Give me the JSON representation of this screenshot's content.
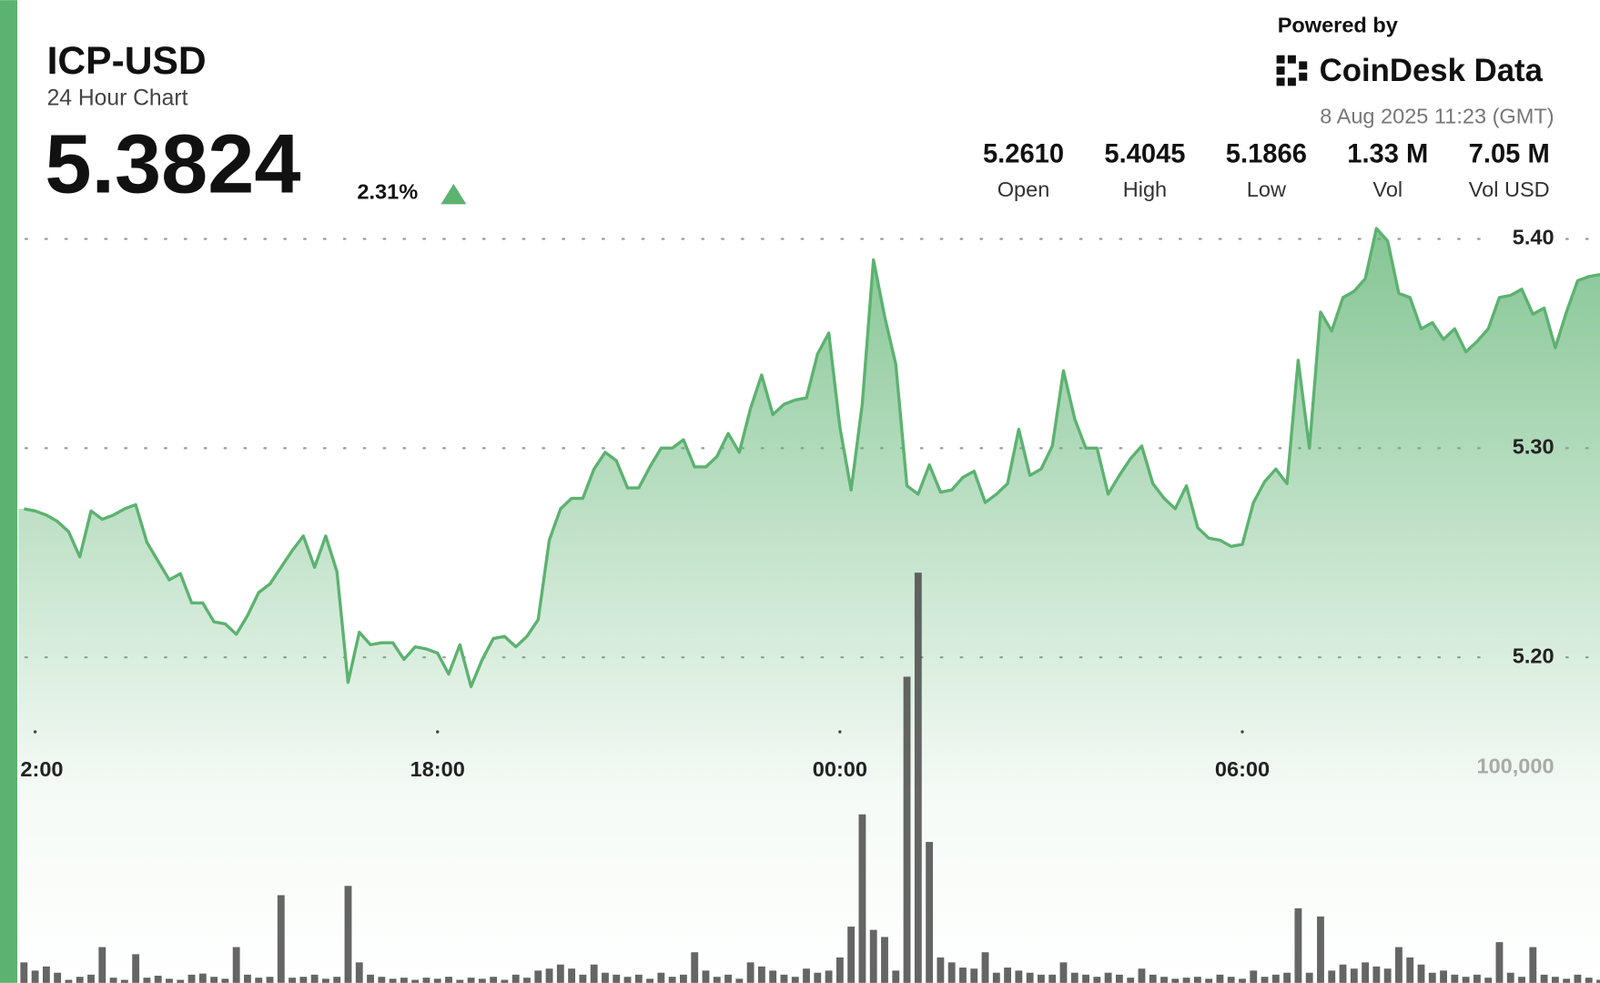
{
  "header": {
    "symbol": "ICP-USD",
    "subtitle": "24 Hour Chart",
    "price": "5.3824",
    "change": "2.31%",
    "powered_by": "Powered by",
    "brand": "CoinDesk Data",
    "timestamp": "8 Aug 2025 11:23 (GMT)",
    "stats": [
      {
        "value": "5.2610",
        "label": "Open"
      },
      {
        "value": "5.4045",
        "label": "High"
      },
      {
        "value": "5.1866",
        "label": "Low"
      },
      {
        "value": "1.33 M",
        "label": "Vol"
      },
      {
        "value": "7.05 M",
        "label": "Vol USD"
      }
    ]
  },
  "chart_data": {
    "type": "line",
    "x": [
      710,
      720,
      730,
      740,
      750,
      760,
      770,
      780,
      790,
      800,
      810,
      820,
      830,
      840,
      850,
      860,
      870,
      880,
      890,
      900,
      910,
      920,
      930,
      940,
      950,
      960,
      970,
      980,
      990,
      1000,
      1010,
      1020,
      1030,
      1040,
      1050,
      1060,
      1070,
      1080,
      1090,
      1100,
      1110,
      1120,
      1130,
      1140,
      1150,
      1160,
      1170,
      1180,
      1190,
      1200,
      1210,
      1220,
      1230,
      1240,
      1250,
      1260,
      1270,
      1280,
      1290,
      1300,
      1310,
      1320,
      1330,
      1340,
      1350,
      1360,
      1370,
      1380,
      1390,
      1400,
      1410,
      1420,
      1430,
      1440,
      1450,
      1460,
      1470,
      1480,
      1490,
      1500,
      1510,
      1520,
      1530,
      1540,
      1550,
      1560,
      1570,
      1580,
      1590,
      1600,
      1610,
      1620,
      1630,
      1640,
      1650,
      1660,
      1670,
      1680,
      1690,
      1700,
      1710,
      1720,
      1730,
      1740,
      1750,
      1760,
      1770,
      1780,
      1790,
      1800,
      1810,
      1820,
      1830,
      1840,
      1850,
      1860,
      1870,
      1880,
      1890,
      1900,
      1910,
      1920,
      1930,
      1940,
      1950,
      1960,
      1970,
      1980,
      1990,
      2000,
      2010,
      2020,
      2030,
      2040,
      2050,
      2060,
      2070,
      2080,
      2090,
      2100,
      2110,
      2120
    ],
    "xlim": [
      705,
      2120
    ],
    "xticks": [
      {
        "value": 720,
        "label": "2:00"
      },
      {
        "value": 1080,
        "label": "18:00"
      },
      {
        "value": 1440,
        "label": "00:00"
      },
      {
        "value": 1800,
        "label": "06:00"
      }
    ],
    "ylim": [
      5.05,
      5.41
    ],
    "yticks": [
      {
        "value": 5.2,
        "label": "5.20"
      },
      {
        "value": 5.3,
        "label": "5.30"
      },
      {
        "value": 5.4,
        "label": "5.40"
      }
    ],
    "y2lim": [
      0,
      355000
    ],
    "y2ticks": [
      {
        "value": 100000,
        "label": "100,000"
      }
    ],
    "grid": true,
    "series": [
      {
        "color": "#5cb270",
        "values": [
          5.271,
          5.27,
          5.268,
          5.265,
          5.26,
          5.248,
          5.27,
          5.266,
          5.268,
          5.271,
          5.273,
          5.255,
          5.246,
          5.237,
          5.24,
          5.226,
          5.226,
          5.217,
          5.216,
          5.211,
          5.22,
          5.231,
          5.235,
          5.243,
          5.251,
          5.258,
          5.243,
          5.258,
          5.241,
          5.188,
          5.212,
          5.206,
          5.207,
          5.207,
          5.199,
          5.205,
          5.204,
          5.202,
          5.192,
          5.206,
          5.186,
          5.199,
          5.209,
          5.21,
          5.205,
          5.21,
          5.218,
          5.256,
          5.271,
          5.276,
          5.276,
          5.29,
          5.298,
          5.294,
          5.281,
          5.281,
          5.291,
          5.3,
          5.3,
          5.304,
          5.291,
          5.291,
          5.296,
          5.307,
          5.298,
          5.319,
          5.335,
          5.316,
          5.321,
          5.323,
          5.324,
          5.345,
          5.355,
          5.31,
          5.28,
          5.321,
          5.39,
          5.363,
          5.34,
          5.282,
          5.278,
          5.292,
          5.279,
          5.28,
          5.286,
          5.289,
          5.274,
          5.278,
          5.283,
          5.309,
          5.287,
          5.29,
          5.301,
          5.337,
          5.314,
          5.3,
          5.3,
          5.278,
          5.287,
          5.295,
          5.301,
          5.283,
          5.276,
          5.271,
          5.282,
          5.262,
          5.257,
          5.256,
          5.253,
          5.254,
          5.274,
          5.284,
          5.29,
          5.283,
          5.342,
          5.3,
          5.365,
          5.356,
          5.372,
          5.375,
          5.381,
          5.405,
          5.399,
          5.374,
          5.372,
          5.357,
          5.36,
          5.352,
          5.357,
          5.346,
          5.351,
          5.357,
          5.372,
          5.373,
          5.376,
          5.364,
          5.367,
          5.348,
          5.365,
          5.38,
          5.382,
          5.383
        ]
      },
      {
        "type": "bar",
        "axis": "y2",
        "color": "#4a4a4a",
        "values": [
          9500,
          5700,
          7600,
          4700,
          1400,
          2800,
          3800,
          16600,
          2400,
          1400,
          13300,
          2400,
          3300,
          1900,
          1400,
          3800,
          4300,
          2800,
          1900,
          16600,
          3800,
          2400,
          2800,
          40700,
          2400,
          2800,
          3800,
          1900,
          2800,
          45000,
          9500,
          3800,
          2800,
          1900,
          2400,
          1400,
          2400,
          1900,
          2800,
          1400,
          2400,
          1900,
          2800,
          1400,
          3800,
          2400,
          5700,
          6600,
          8500,
          6600,
          3800,
          8500,
          4700,
          3800,
          2800,
          3800,
          1900,
          4700,
          2800,
          3800,
          14200,
          5700,
          2800,
          3800,
          1900,
          9500,
          7600,
          5700,
          3800,
          2800,
          6600,
          4700,
          5700,
          11800,
          26100,
          78200,
          24600,
          21300,
          5700,
          142100,
          190400,
          65400,
          11800,
          9500,
          7100,
          6600,
          14200,
          4700,
          7100,
          5700,
          4700,
          3800,
          3800,
          9500,
          4700,
          3800,
          2800,
          4700,
          3800,
          2400,
          6600,
          3800,
          2800,
          1900,
          2400,
          2800,
          1900,
          3800,
          2800,
          1900,
          5700,
          2800,
          3800,
          4700,
          34600,
          4700,
          30800,
          5700,
          8500,
          6600,
          9500,
          7600,
          6600,
          16600,
          11800,
          8500,
          4700,
          5700,
          3800,
          2800,
          3800,
          2400,
          18900,
          4700,
          2800,
          16600,
          3800,
          2800,
          1900,
          3800,
          2400,
          1400
        ]
      }
    ]
  }
}
